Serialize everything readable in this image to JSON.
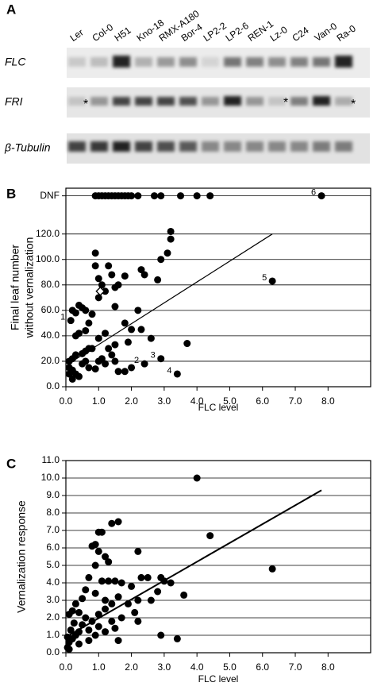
{
  "panel_labels": [
    "A",
    "B",
    "C"
  ],
  "blot": {
    "lanes": [
      "Ler",
      "Col-0",
      "H51",
      "Kno-18",
      "RMX-A180",
      "Bor-4",
      "LP2-2",
      "LP2-6",
      "REN-1",
      "Lz-0",
      "C24",
      "Van-0",
      "Ra-0"
    ],
    "rows": [
      "FLC",
      "FRI",
      "β-Tubulin"
    ],
    "markers": [
      "*",
      "*",
      "*"
    ]
  },
  "chart_data": [
    {
      "type": "scatter",
      "x_label": "FLC level",
      "y_label": [
        "Final leaf number",
        "without vernalization"
      ],
      "xlim": [
        0,
        9.3
      ],
      "ylim": [
        0,
        156
      ],
      "grid": "y",
      "xticks": [
        {
          "value": 0,
          "label": "0.0"
        },
        {
          "value": 1,
          "label": "1.0"
        },
        {
          "value": 2,
          "label": "2.0"
        },
        {
          "value": 3,
          "label": "3.0"
        },
        {
          "value": 4,
          "label": "4.0"
        },
        {
          "value": 5,
          "label": "5.0"
        },
        {
          "value": 6,
          "label": "6.0"
        },
        {
          "value": 7,
          "label": "7.0"
        },
        {
          "value": 8,
          "label": "8.0"
        }
      ],
      "yticks": [
        {
          "value": 0,
          "label": "0.0"
        },
        {
          "value": 20,
          "label": "20.0"
        },
        {
          "value": 40,
          "label": "40.0"
        },
        {
          "value": 60,
          "label": "60.0"
        },
        {
          "value": 80,
          "label": "80.0"
        },
        {
          "value": 100,
          "label": "100.0"
        },
        {
          "value": 120,
          "label": "120.0"
        },
        {
          "value": 150,
          "label": "DNF"
        }
      ],
      "series": [
        {
          "color": "#000000",
          "marker": "circle",
          "x": [
            0.9,
            1.0,
            1.1,
            1.2,
            1.3,
            1.4,
            1.5,
            1.6,
            1.7,
            1.8,
            1.9,
            2.0,
            2.2,
            2.7,
            2.9,
            3.5,
            4.0,
            4.4,
            7.8,
            0.15,
            0.2,
            0.3,
            0.4,
            0.5,
            0.6,
            0.4,
            0.3,
            0.6,
            0.7,
            0.8,
            0.9,
            0.9,
            1.0,
            1.0,
            1.1,
            1.2,
            1.3,
            1.4,
            1.5,
            1.6,
            1.8,
            1.5,
            2.2,
            2.3,
            2.4,
            2.8,
            2.9,
            3.2,
            3.2,
            3.1,
            2.3,
            2.6,
            2.0,
            1.8,
            1.9,
            1.5,
            1.3,
            1.2,
            1.0,
            0.8,
            0.7,
            0.6,
            0.5,
            0.3,
            0.2,
            0.1,
            0.1,
            0.2,
            0.3,
            0.4,
            0.1,
            0.2,
            0.5,
            0.6,
            0.7,
            0.9,
            1.0,
            1.1,
            1.2,
            1.4,
            1.5,
            1.6,
            1.8,
            2.0,
            2.4,
            2.9,
            3.4,
            3.7,
            6.3
          ],
          "values": [
            150,
            150,
            150,
            150,
            150,
            150,
            150,
            150,
            150,
            150,
            150,
            150,
            150,
            150,
            150,
            150,
            150,
            150,
            150,
            52,
            60,
            58,
            64,
            62,
            60,
            42,
            40,
            44,
            50,
            57,
            105,
            95,
            85,
            70,
            80,
            75,
            95,
            88,
            78,
            80,
            87,
            63,
            60,
            92,
            88,
            84,
            100,
            122,
            116,
            105,
            45,
            38,
            45,
            50,
            35,
            33,
            30,
            42,
            38,
            30,
            30,
            28,
            26,
            25,
            22,
            20,
            15,
            13,
            10,
            8,
            10,
            6,
            18,
            20,
            15,
            14,
            20,
            22,
            18,
            25,
            20,
            12,
            12,
            15,
            18,
            22,
            10,
            34,
            83
          ]
        },
        {
          "color": "#000000",
          "marker": "diamond",
          "x": [
            1.05
          ],
          "values": [
            75
          ]
        }
      ],
      "trendline": {
        "x": [
          0.2,
          6.3
        ],
        "y": [
          20,
          120
        ]
      },
      "annotations": [
        {
          "text": "1",
          "x": 0.15,
          "y": 52
        },
        {
          "text": "2",
          "x": 2.4,
          "y": 18
        },
        {
          "text": "3",
          "x": 2.9,
          "y": 22
        },
        {
          "text": "4",
          "x": 3.4,
          "y": 10
        },
        {
          "text": "5",
          "x": 6.3,
          "y": 83
        },
        {
          "text": "6",
          "x": 7.8,
          "y": 150
        }
      ]
    },
    {
      "type": "scatter",
      "x_label": "FLC level",
      "y_label": [
        "Vernalization response"
      ],
      "xlim": [
        0,
        9.3
      ],
      "ylim": [
        0,
        11
      ],
      "grid": "y",
      "xticks": [
        {
          "value": 0,
          "label": "0.0"
        },
        {
          "value": 1,
          "label": "1.0"
        },
        {
          "value": 2,
          "label": "2.0"
        },
        {
          "value": 3,
          "label": "3.0"
        },
        {
          "value": 4,
          "label": "4.0"
        },
        {
          "value": 5,
          "label": "5.0"
        },
        {
          "value": 6,
          "label": "6.0"
        },
        {
          "value": 7,
          "label": "7.0"
        },
        {
          "value": 8,
          "label": "8.0"
        }
      ],
      "yticks": [
        {
          "value": 0,
          "label": "0.0"
        },
        {
          "value": 1,
          "label": "1.0"
        },
        {
          "value": 2,
          "label": "2.0"
        },
        {
          "value": 3,
          "label": "3.0"
        },
        {
          "value": 4,
          "label": "4.0"
        },
        {
          "value": 5,
          "label": "5.0"
        },
        {
          "value": 6,
          "label": "6.0"
        },
        {
          "value": 7,
          "label": "7.0"
        },
        {
          "value": 8,
          "label": "8.0"
        },
        {
          "value": 9,
          "label": "9.0"
        },
        {
          "value": 10,
          "label": "10.0"
        },
        {
          "value": 11,
          "label": "11.0"
        }
      ],
      "series": [
        {
          "color": "#000000",
          "marker": "circle",
          "x": [
            4.0,
            4.4,
            6.3,
            1.4,
            1.6,
            1.1,
            1.0,
            0.9,
            0.8,
            1.0,
            1.2,
            1.3,
            2.2,
            0.9,
            0.7,
            1.1,
            1.3,
            1.5,
            1.7,
            2.0,
            2.3,
            2.5,
            2.9,
            3.0,
            3.2,
            3.6,
            2.8,
            2.6,
            2.2,
            1.9,
            1.6,
            1.4,
            1.2,
            0.9,
            0.6,
            0.5,
            0.3,
            0.2,
            0.1,
            0.4,
            0.6,
            0.8,
            1.0,
            1.2,
            1.4,
            1.7,
            2.1,
            2.2,
            1.5,
            1.2,
            1.0,
            0.9,
            0.7,
            0.5,
            0.4,
            0.3,
            0.2,
            0.1,
            0.05,
            0.15,
            0.25,
            0.05,
            0.1,
            2.9,
            3.4,
            1.6,
            0.4,
            0.7
          ],
          "values": [
            10.0,
            6.7,
            4.8,
            7.4,
            7.5,
            6.9,
            6.9,
            6.2,
            6.1,
            5.8,
            5.5,
            5.2,
            5.8,
            5.0,
            4.3,
            4.1,
            4.1,
            4.1,
            4.0,
            3.8,
            4.3,
            4.3,
            4.3,
            4.1,
            4.0,
            3.3,
            3.5,
            3.0,
            3.0,
            2.8,
            3.2,
            2.8,
            3.0,
            3.4,
            3.6,
            3.1,
            2.8,
            2.4,
            2.2,
            2.3,
            2.0,
            1.8,
            2.2,
            2.5,
            1.8,
            2.0,
            2.3,
            1.8,
            1.4,
            1.2,
            1.5,
            1.0,
            1.3,
            1.6,
            1.2,
            1.0,
            0.8,
            0.6,
            0.9,
            1.3,
            1.7,
            0.3,
            0.2,
            1.0,
            0.8,
            0.7,
            0.5,
            0.7
          ]
        }
      ],
      "trendline": {
        "x": [
          0,
          7.8
        ],
        "y": [
          0.9,
          9.3
        ]
      }
    }
  ]
}
